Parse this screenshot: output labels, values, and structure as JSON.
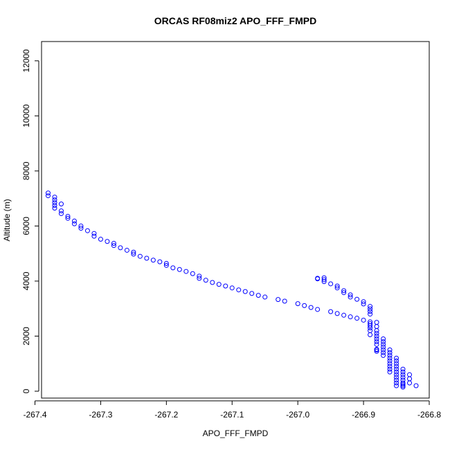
{
  "chart_data": {
    "type": "scatter",
    "title": "ORCAS RF08miz2 APO_FFF_FMPD",
    "xlabel": "APO_FFF_FMPD",
    "ylabel": "Altitude (m)",
    "xlim": [
      -267.39,
      -266.8
    ],
    "ylim": [
      -250,
      12700
    ],
    "xticks": [
      -267.4,
      -267.3,
      -267.2,
      -267.1,
      -267.0,
      -266.9,
      -266.8
    ],
    "xtick_labels": [
      "-267.4",
      "-267.3",
      "-267.2",
      "-267.1",
      "-267.0",
      "-266.9",
      "-266.8"
    ],
    "yticks": [
      0,
      2000,
      4000,
      6000,
      8000,
      10000,
      12000
    ],
    "ytick_labels": [
      "0",
      "2000",
      "4000",
      "6000",
      "8000",
      "10000",
      "12000"
    ],
    "point_color": "#0000ff",
    "series": [
      {
        "name": "APO_FFF_FMPD",
        "x": [
          -267.38,
          -267.38,
          -267.37,
          -267.37,
          -267.37,
          -267.37,
          -267.37,
          -267.36,
          -267.36,
          -267.36,
          -267.35,
          -267.35,
          -267.34,
          -267.34,
          -267.33,
          -267.33,
          -267.32,
          -267.31,
          -267.31,
          -267.3,
          -267.29,
          -267.28,
          -267.28,
          -267.27,
          -267.26,
          -267.25,
          -267.25,
          -267.24,
          -267.23,
          -267.22,
          -267.21,
          -267.2,
          -267.2,
          -267.19,
          -267.18,
          -267.17,
          -267.16,
          -267.15,
          -267.15,
          -267.14,
          -267.13,
          -267.12,
          -267.11,
          -267.1,
          -267.09,
          -267.08,
          -267.07,
          -267.06,
          -267.05,
          -267.03,
          -267.02,
          -267.0,
          -266.99,
          -266.98,
          -266.97,
          -266.95,
          -266.94,
          -266.93,
          -266.92,
          -266.91,
          -266.9,
          -266.89,
          -266.89,
          -266.89,
          -266.89,
          -266.89,
          -266.89,
          -266.88,
          -266.88,
          -266.88,
          -266.88,
          -266.88,
          -266.88,
          -266.88,
          -266.88,
          -266.87,
          -266.87,
          -266.87,
          -266.87,
          -266.87,
          -266.87,
          -266.87,
          -266.86,
          -266.86,
          -266.86,
          -266.86,
          -266.86,
          -266.86,
          -266.86,
          -266.86,
          -266.86,
          -266.85,
          -266.85,
          -266.85,
          -266.85,
          -266.85,
          -266.85,
          -266.85,
          -266.85,
          -266.85,
          -266.85,
          -266.85,
          -266.84,
          -266.84,
          -266.84,
          -266.84,
          -266.84,
          -266.84,
          -266.84,
          -266.84,
          -266.84,
          -266.83,
          -266.83,
          -266.83,
          -266.82,
          -266.97,
          -266.97,
          -266.96,
          -266.96,
          -266.96,
          -266.95,
          -266.94,
          -266.94,
          -266.93,
          -266.93,
          -266.92,
          -266.92,
          -266.91,
          -266.9,
          -266.9,
          -266.89,
          -266.89,
          -266.89,
          -266.89,
          -266.88,
          -266.88,
          -266.88
        ],
        "y": [
          7200,
          7100,
          7050,
          6950,
          6850,
          6750,
          6650,
          6800,
          6550,
          6450,
          6350,
          6280,
          6180,
          6080,
          6000,
          5920,
          5830,
          5730,
          5630,
          5520,
          5440,
          5370,
          5290,
          5210,
          5120,
          5050,
          4980,
          4900,
          4830,
          4760,
          4700,
          4640,
          4570,
          4480,
          4420,
          4350,
          4270,
          4180,
          4100,
          4030,
          3950,
          3880,
          3820,
          3750,
          3680,
          3620,
          3550,
          3480,
          3420,
          3330,
          3270,
          3180,
          3110,
          3040,
          2970,
          2890,
          2820,
          2760,
          2700,
          2650,
          2580,
          2520,
          2450,
          2380,
          2300,
          2200,
          2050,
          2500,
          2350,
          2200,
          2100,
          2000,
          1900,
          1800,
          1700,
          1900,
          1800,
          1700,
          1600,
          1500,
          1400,
          1300,
          1500,
          1400,
          1300,
          1200,
          1100,
          1000,
          900,
          800,
          700,
          1200,
          1100,
          1000,
          900,
          800,
          700,
          600,
          500,
          400,
          300,
          200,
          800,
          700,
          600,
          500,
          400,
          300,
          200,
          150,
          250,
          600,
          450,
          300,
          200,
          4100,
          4080,
          4120,
          4050,
          3980,
          3900,
          3820,
          3750,
          3650,
          3580,
          3500,
          3420,
          3340,
          3250,
          3170,
          3080,
          2990,
          2900,
          2800,
          1500,
          1450,
          1520
        ]
      }
    ]
  }
}
